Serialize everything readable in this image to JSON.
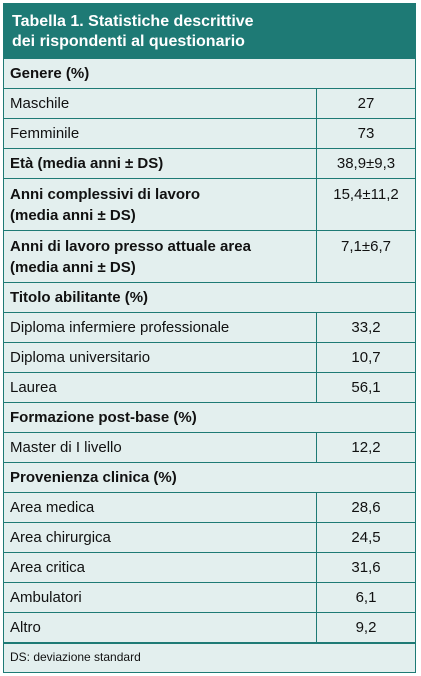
{
  "table": {
    "title": "Tabella 1. Statistiche descrittive\ndei rispondenti al questionario",
    "sections": {
      "genere": "Genere (%)",
      "titolo": "Titolo abilitante (%)",
      "formazione": "Formazione post-base (%)",
      "provenienza": "Provenienza clinica (%)"
    },
    "rows": {
      "maschile": {
        "label": "Maschile",
        "value": "27"
      },
      "femminile": {
        "label": "Femminile",
        "value": "73"
      },
      "eta": {
        "label": "Età (media anni ± DS)",
        "value": "38,9±9,3"
      },
      "anni_complessivi": {
        "label": "Anni complessivi di lavoro\n(media anni ± DS)",
        "value": "15,4±11,2"
      },
      "anni_area": {
        "label": "Anni di lavoro presso attuale area\n(media anni ± DS)",
        "value": "7,1±6,7"
      },
      "diploma_prof": {
        "label": "Diploma infermiere professionale",
        "value": "33,2"
      },
      "diploma_univ": {
        "label": "Diploma universitario",
        "value": "10,7"
      },
      "laurea": {
        "label": "Laurea",
        "value": "56,1"
      },
      "master": {
        "label": "Master di I livello",
        "value": "12,2"
      },
      "area_medica": {
        "label": "Area medica",
        "value": "28,6"
      },
      "area_chirurgica": {
        "label": "Area chirurgica",
        "value": "24,5"
      },
      "area_critica": {
        "label": "Area critica",
        "value": "31,6"
      },
      "ambulatori": {
        "label": "Ambulatori",
        "value": "6,1"
      },
      "altro": {
        "label": "Altro",
        "value": "9,2"
      }
    },
    "note": "DS: deviazione standard"
  },
  "colors": {
    "header_bg": "#1e7a75",
    "table_bg": "#e3efee",
    "header_text": "#ffffff"
  }
}
